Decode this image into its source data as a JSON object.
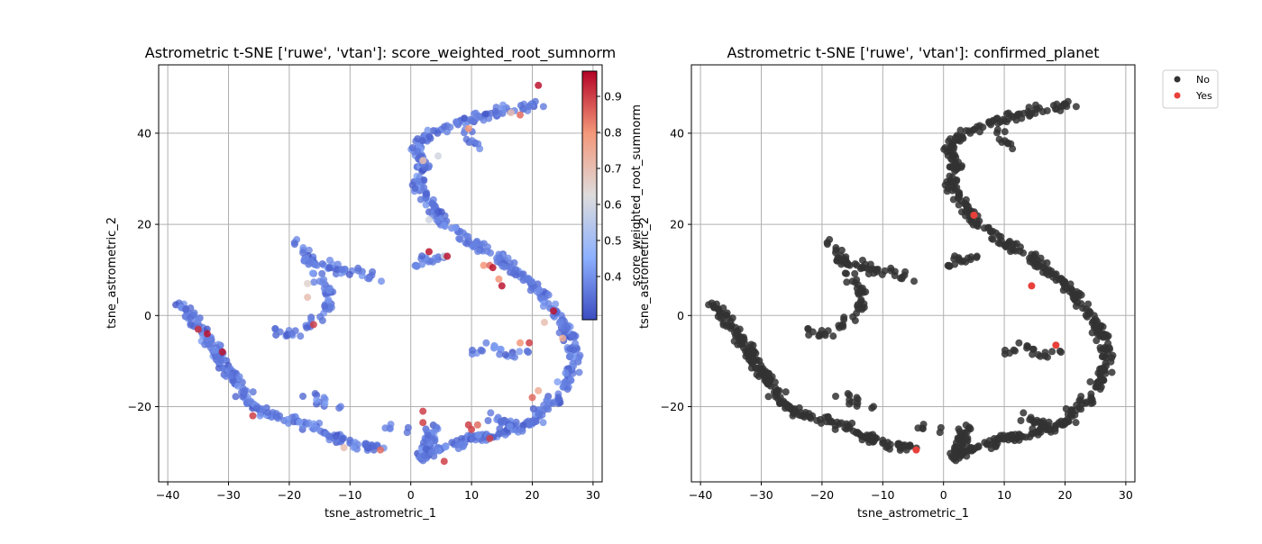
{
  "chart_data": [
    {
      "type": "scatter",
      "title": "Astrometric t-SNE ['ruwe', 'vtan']: score_weighted_root_sumnorm",
      "xlabel": "tsne_astrometric_1",
      "ylabel": "tsne_astrometric_2",
      "xlim": [
        -41.5,
        31.5
      ],
      "ylim": [
        -36.5,
        55
      ],
      "xticks": [
        -40,
        -30,
        -20,
        -10,
        0,
        10,
        20,
        30
      ],
      "yticks": [
        -20,
        0,
        20,
        40
      ],
      "grid": true,
      "colormap": "coolwarm",
      "colorbar": {
        "label": "score_weighted_root_sumnorm",
        "range": [
          0.28,
          0.97
        ],
        "ticks": [
          0.4,
          0.5,
          0.6,
          0.7,
          0.8,
          0.9
        ]
      },
      "highlights": [
        {
          "x": 21,
          "y": 50.5,
          "c": 0.95
        },
        {
          "x": -31,
          "y": -8,
          "c": 0.95
        },
        {
          "x": -26,
          "y": -22,
          "c": 0.9
        },
        {
          "x": -35,
          "y": -3,
          "c": 0.92
        },
        {
          "x": -17,
          "y": 4,
          "c": 0.7
        },
        {
          "x": -17,
          "y": 7,
          "c": 0.65
        },
        {
          "x": 3,
          "y": 14,
          "c": 0.95
        },
        {
          "x": 5.5,
          "y": 13,
          "c": 0.6
        },
        {
          "x": 6,
          "y": 13,
          "c": 0.95
        },
        {
          "x": 12,
          "y": 11,
          "c": 0.8
        },
        {
          "x": 13,
          "y": 11,
          "c": 0.85
        },
        {
          "x": 13.5,
          "y": 10.5,
          "c": 0.95
        },
        {
          "x": 14.5,
          "y": 8,
          "c": 0.8
        },
        {
          "x": 15,
          "y": 6.5,
          "c": 0.95
        },
        {
          "x": 23.5,
          "y": 1,
          "c": 0.95
        },
        {
          "x": 22,
          "y": -1.5,
          "c": 0.7
        },
        {
          "x": 18,
          "y": -6,
          "c": 0.8
        },
        {
          "x": 19.5,
          "y": -6,
          "c": 0.9
        },
        {
          "x": 20,
          "y": -18,
          "c": 0.85
        },
        {
          "x": 21,
          "y": -16.5,
          "c": 0.75
        },
        {
          "x": 9.5,
          "y": -24,
          "c": 0.9
        },
        {
          "x": 10,
          "y": -25,
          "c": 0.9
        },
        {
          "x": 11,
          "y": -24,
          "c": 0.85
        },
        {
          "x": 13,
          "y": -27,
          "c": 0.9
        },
        {
          "x": 2,
          "y": -21,
          "c": 0.9
        },
        {
          "x": 2,
          "y": -23.5,
          "c": 0.9
        },
        {
          "x": 5.5,
          "y": -32,
          "c": 0.9
        },
        {
          "x": -5,
          "y": -29.5,
          "c": 0.85
        },
        {
          "x": 2,
          "y": 34,
          "c": 0.7
        },
        {
          "x": 4.5,
          "y": 35,
          "c": 0.6
        },
        {
          "x": 9.5,
          "y": 41,
          "c": 0.8
        },
        {
          "x": 16.5,
          "y": 44.5,
          "c": 0.7
        },
        {
          "x": 18,
          "y": 44,
          "c": 0.85
        },
        {
          "x": 3,
          "y": 21,
          "c": 0.6
        },
        {
          "x": -33.5,
          "y": -4,
          "c": 0.95
        },
        {
          "x": -16,
          "y": -2,
          "c": 0.9
        },
        {
          "x": -11,
          "y": -29,
          "c": 0.7
        },
        {
          "x": 25,
          "y": -5,
          "c": 0.75
        }
      ]
    },
    {
      "type": "scatter",
      "title": "Astrometric t-SNE ['ruwe', 'vtan']: confirmed_planet",
      "xlabel": "tsne_astrometric_1",
      "ylabel": "tsne_astrometric_2",
      "xlim": [
        -41.5,
        31.5
      ],
      "ylim": [
        -36.5,
        55
      ],
      "xticks": [
        -40,
        -30,
        -20,
        -10,
        0,
        10,
        20,
        30
      ],
      "yticks": [
        -20,
        0,
        20,
        40
      ],
      "grid": true,
      "legend": {
        "placement": "outside-upper-right",
        "entries": [
          {
            "label": "No",
            "color": "#333333"
          },
          {
            "label": "Yes",
            "color": "#e8403a"
          }
        ]
      },
      "yes_points": [
        {
          "x": 5,
          "y": 22
        },
        {
          "x": 14.5,
          "y": 6.5
        },
        {
          "x": 18.5,
          "y": -6.5
        },
        {
          "x": -4.5,
          "y": -29.5
        }
      ]
    }
  ],
  "colors": {
    "no_point": "#333333",
    "yes_point": "#e8403a",
    "grid": "#b0b0b0"
  }
}
